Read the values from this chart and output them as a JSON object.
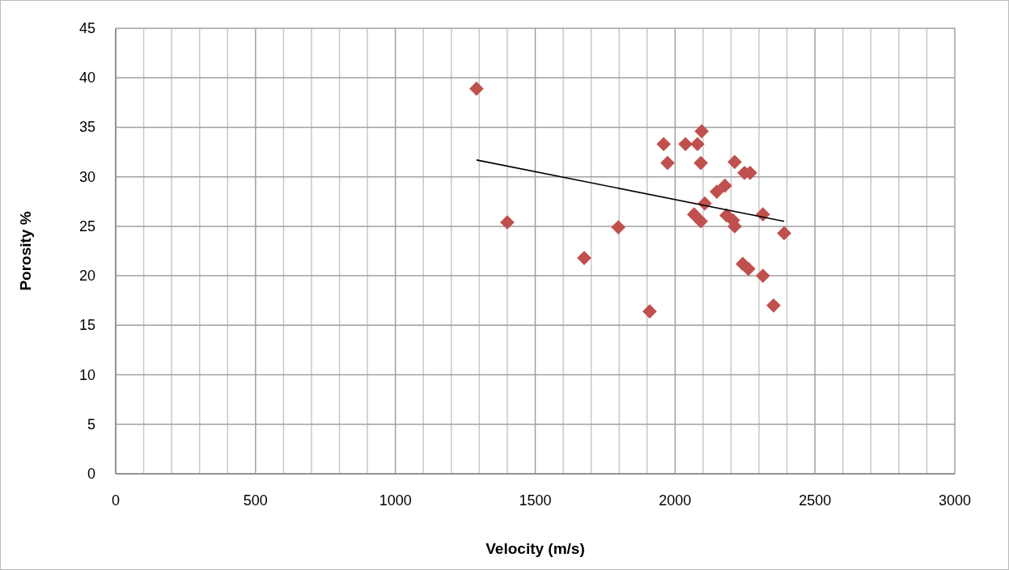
{
  "chart_data": {
    "type": "scatter",
    "xlabel": "Velocity (m/s)",
    "ylabel": "Porosity %",
    "xlim": [
      0,
      3000
    ],
    "ylim": [
      0,
      45
    ],
    "xticks": [
      0,
      {
        "value": 100,
        "label": null
      },
      {
        "value": 200,
        "label": null
      },
      {
        "value": 300,
        "label": null
      },
      {
        "value": 400,
        "label": null
      },
      500,
      {
        "value": 600,
        "label": null
      },
      {
        "value": 700,
        "label": null
      },
      {
        "value": 800,
        "label": null
      },
      {
        "value": 900,
        "label": null
      },
      1000,
      {
        "value": 1100,
        "label": null
      },
      {
        "value": 1200,
        "label": null
      },
      {
        "value": 1300,
        "label": null
      },
      {
        "value": 1400,
        "label": null
      },
      1500,
      {
        "value": 1600,
        "label": null
      },
      {
        "value": 1700,
        "label": null
      },
      {
        "value": 1800,
        "label": null
      },
      {
        "value": 1900,
        "label": null
      },
      2000,
      {
        "value": 2100,
        "label": null
      },
      {
        "value": 2200,
        "label": null
      },
      {
        "value": 2300,
        "label": null
      },
      {
        "value": 2400,
        "label": null
      },
      2500,
      {
        "value": 2600,
        "label": null
      },
      {
        "value": 2700,
        "label": null
      },
      {
        "value": 2800,
        "label": null
      },
      {
        "value": 2900,
        "label": null
      },
      3000
    ],
    "yticks": [
      0,
      5,
      10,
      15,
      20,
      25,
      30,
      35,
      40,
      45
    ],
    "grid": true,
    "marker": "diamond",
    "series": [
      {
        "color": "#c0504d",
        "x": [
          1290,
          1400,
          1675,
          1797,
          1909,
          1959,
          1973,
          2037,
          2080,
          2095,
          2092,
          2068,
          2092,
          2106,
          2149,
          2178,
          2184,
          2207,
          2213,
          2213,
          2248,
          2268,
          2242,
          2262,
          2314,
          2314,
          2352,
          2390
        ],
        "values": [
          38.9,
          25.4,
          21.8,
          24.9,
          16.4,
          33.3,
          31.4,
          33.3,
          33.3,
          34.6,
          31.4,
          26.2,
          25.5,
          27.3,
          28.5,
          29.1,
          26.1,
          25.6,
          25.0,
          31.5,
          30.4,
          30.4,
          21.2,
          20.7,
          20.0,
          26.2,
          17.0,
          24.3
        ]
      },
      {
        "type": "line",
        "color": "#000000",
        "marker": "none",
        "x": [
          1290,
          2390
        ],
        "values": [
          31.7,
          25.5
        ]
      }
    ]
  }
}
